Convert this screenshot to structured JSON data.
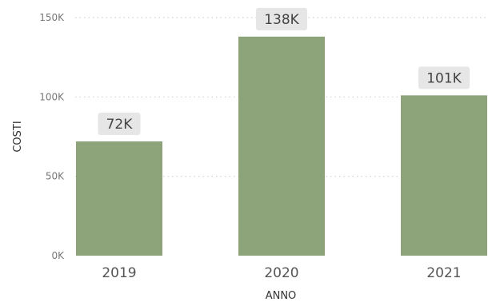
{
  "chart_data": {
    "type": "bar",
    "categories": [
      "2019",
      "2020",
      "2021"
    ],
    "values": [
      72,
      138,
      101
    ],
    "value_labels": [
      "72K",
      "138K",
      "101K"
    ],
    "xlabel": "ANNO",
    "ylabel": "COSTI",
    "ylim": [
      0,
      150
    ],
    "yticks": [
      0,
      50,
      100,
      150
    ],
    "ytick_labels": [
      "0K",
      "50K",
      "100K",
      "150K"
    ],
    "grid": true,
    "legend": "none",
    "colors": {
      "bar": "#8da47b",
      "data_label_bg": "#e6e6e6"
    }
  }
}
